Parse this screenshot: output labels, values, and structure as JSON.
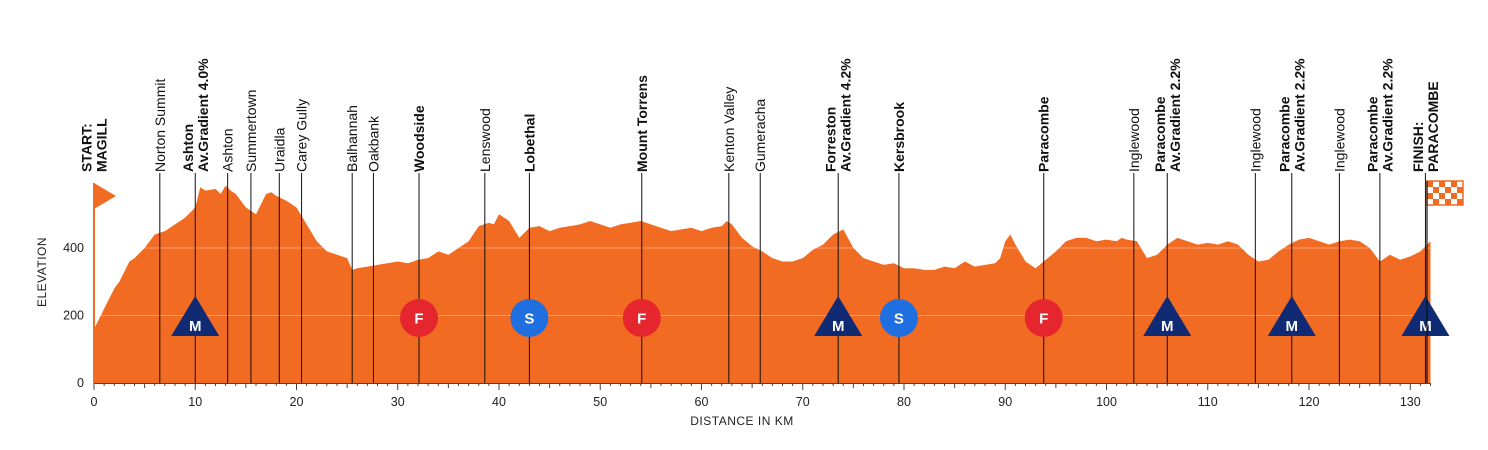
{
  "chart_data": {
    "type": "area",
    "title": "",
    "xlabel": "DISTANCE IN KM",
    "ylabel": "ELEVATION",
    "xlim": [
      0,
      132
    ],
    "ylim": [
      0,
      600
    ],
    "x_ticks": [
      0,
      10,
      20,
      30,
      40,
      50,
      60,
      70,
      80,
      90,
      100,
      110,
      120,
      130
    ],
    "y_ticks": [
      0,
      200,
      400
    ],
    "grid": "horizontal at 200 and 400",
    "series": [
      {
        "x": [
          0,
          0.5,
          1,
          2,
          2.5,
          3,
          3.5,
          4,
          5,
          6,
          7,
          8,
          9,
          10,
          10.5,
          11,
          12,
          12.5,
          13,
          13.5,
          14,
          15,
          16,
          17,
          17.5,
          18,
          19,
          20,
          21,
          22,
          23,
          24,
          25,
          25.5,
          26,
          27,
          28,
          29,
          30,
          31,
          32,
          33,
          34,
          35,
          36,
          37,
          38,
          39,
          39.5,
          40,
          41,
          42,
          43,
          44,
          45,
          46,
          47,
          48,
          49,
          50,
          51,
          52,
          53,
          54,
          55,
          56,
          57,
          58,
          59,
          60,
          61,
          62,
          62.5,
          63,
          64,
          65,
          66,
          67,
          68,
          69,
          70,
          71,
          72,
          73,
          74,
          75,
          76,
          77,
          78,
          79,
          80,
          81,
          82,
          83,
          84,
          85,
          86,
          87,
          88,
          89,
          89.5,
          90,
          90.5,
          91,
          92,
          93,
          94,
          95,
          96,
          97,
          98,
          99,
          100,
          101,
          101.5,
          102,
          103,
          104,
          105,
          106,
          107,
          108,
          109,
          110,
          111,
          112,
          113,
          114,
          115,
          116,
          117,
          118,
          119,
          120,
          121,
          122,
          123,
          124,
          125,
          126,
          127,
          128,
          129,
          130,
          131,
          132
        ],
        "y": [
          160,
          190,
          220,
          280,
          300,
          330,
          360,
          370,
          400,
          440,
          450,
          470,
          490,
          520,
          580,
          570,
          575,
          560,
          585,
          570,
          560,
          520,
          500,
          560,
          565,
          555,
          540,
          520,
          470,
          420,
          390,
          380,
          370,
          335,
          340,
          345,
          350,
          355,
          360,
          355,
          365,
          370,
          390,
          380,
          400,
          420,
          465,
          475,
          470,
          500,
          480,
          430,
          460,
          465,
          450,
          460,
          465,
          470,
          480,
          470,
          460,
          470,
          475,
          480,
          470,
          460,
          450,
          455,
          460,
          450,
          460,
          465,
          480,
          470,
          430,
          405,
          390,
          370,
          360,
          360,
          370,
          395,
          410,
          440,
          455,
          400,
          370,
          360,
          350,
          355,
          340,
          340,
          335,
          335,
          345,
          340,
          360,
          345,
          350,
          355,
          370,
          420,
          440,
          410,
          360,
          340,
          365,
          390,
          420,
          430,
          430,
          420,
          425,
          420,
          430,
          425,
          420,
          370,
          380,
          410,
          430,
          420,
          410,
          415,
          410,
          420,
          410,
          380,
          360,
          365,
          390,
          410,
          425,
          430,
          420,
          410,
          420,
          425,
          420,
          400,
          360,
          380,
          365,
          375,
          390,
          420
        ]
      }
    ],
    "waypoints": [
      {
        "km": 0,
        "label": [
          "START:",
          "MAGILL"
        ],
        "bold": true,
        "marker": "start"
      },
      {
        "km": 6.5,
        "label": [
          "Norton Summit"
        ],
        "bold": false
      },
      {
        "km": 10,
        "label": [
          "Ashton",
          "Av.Gradient 4.0%"
        ],
        "bold": true,
        "marker": "M"
      },
      {
        "km": 13.2,
        "label": [
          "Ashton"
        ],
        "bold": false
      },
      {
        "km": 15.5,
        "label": [
          "Summertown"
        ],
        "bold": false
      },
      {
        "km": 18.3,
        "label": [
          "Uraidla"
        ],
        "bold": false
      },
      {
        "km": 20.5,
        "label": [
          "Carey Gully"
        ],
        "bold": false
      },
      {
        "km": 25.5,
        "label": [
          "Balhannah"
        ],
        "bold": false
      },
      {
        "km": 27.6,
        "label": [
          "Oakbank"
        ],
        "bold": false
      },
      {
        "km": 32.1,
        "label": [
          "Woodside"
        ],
        "bold": true,
        "marker": "F"
      },
      {
        "km": 38.6,
        "label": [
          "Lenswood"
        ],
        "bold": false
      },
      {
        "km": 43,
        "label": [
          "Lobethal"
        ],
        "bold": true,
        "marker": "S"
      },
      {
        "km": 54.1,
        "label": [
          "Mount Torrens"
        ],
        "bold": true,
        "marker": "F"
      },
      {
        "km": 62.7,
        "label": [
          "Kenton Valley"
        ],
        "bold": false
      },
      {
        "km": 65.8,
        "label": [
          "Gumeracha"
        ],
        "bold": false
      },
      {
        "km": 73.5,
        "label": [
          "Forreston",
          "Av.Gradient 4.2%"
        ],
        "bold": true,
        "marker": "M"
      },
      {
        "km": 79.5,
        "label": [
          "Kersbrook"
        ],
        "bold": true,
        "marker": "S"
      },
      {
        "km": 93.8,
        "label": [
          "Paracombe"
        ],
        "bold": true,
        "marker": "F"
      },
      {
        "km": 102.7,
        "label": [
          "Inglewood"
        ],
        "bold": false
      },
      {
        "km": 106,
        "label": [
          "Paracombe",
          "Av.Gradient 2.2%"
        ],
        "bold": true,
        "marker": "M"
      },
      {
        "km": 114.7,
        "label": [
          "Inglewood"
        ],
        "bold": false
      },
      {
        "km": 118.3,
        "label": [
          "Paracombe",
          "Av.Gradient 2.2%"
        ],
        "bold": true,
        "marker": "M"
      },
      {
        "km": 123,
        "label": [
          "Inglewood"
        ],
        "bold": false
      },
      {
        "km": 127,
        "label": [
          "Paracombe",
          "Av.Gradient 2.2%"
        ],
        "bold": true
      },
      {
        "km": 131.5,
        "label": [
          "FINISH:",
          "PARACOMBE"
        ],
        "bold": true,
        "marker": "M"
      }
    ]
  },
  "colors": {
    "profile_fill": "#f26b22",
    "climb_marker": "#102a73",
    "feed_marker": "#e6262e",
    "sprint_marker": "#1f6fe0",
    "flag_start": "#f26b22",
    "flag_finish": "#f26b22"
  }
}
